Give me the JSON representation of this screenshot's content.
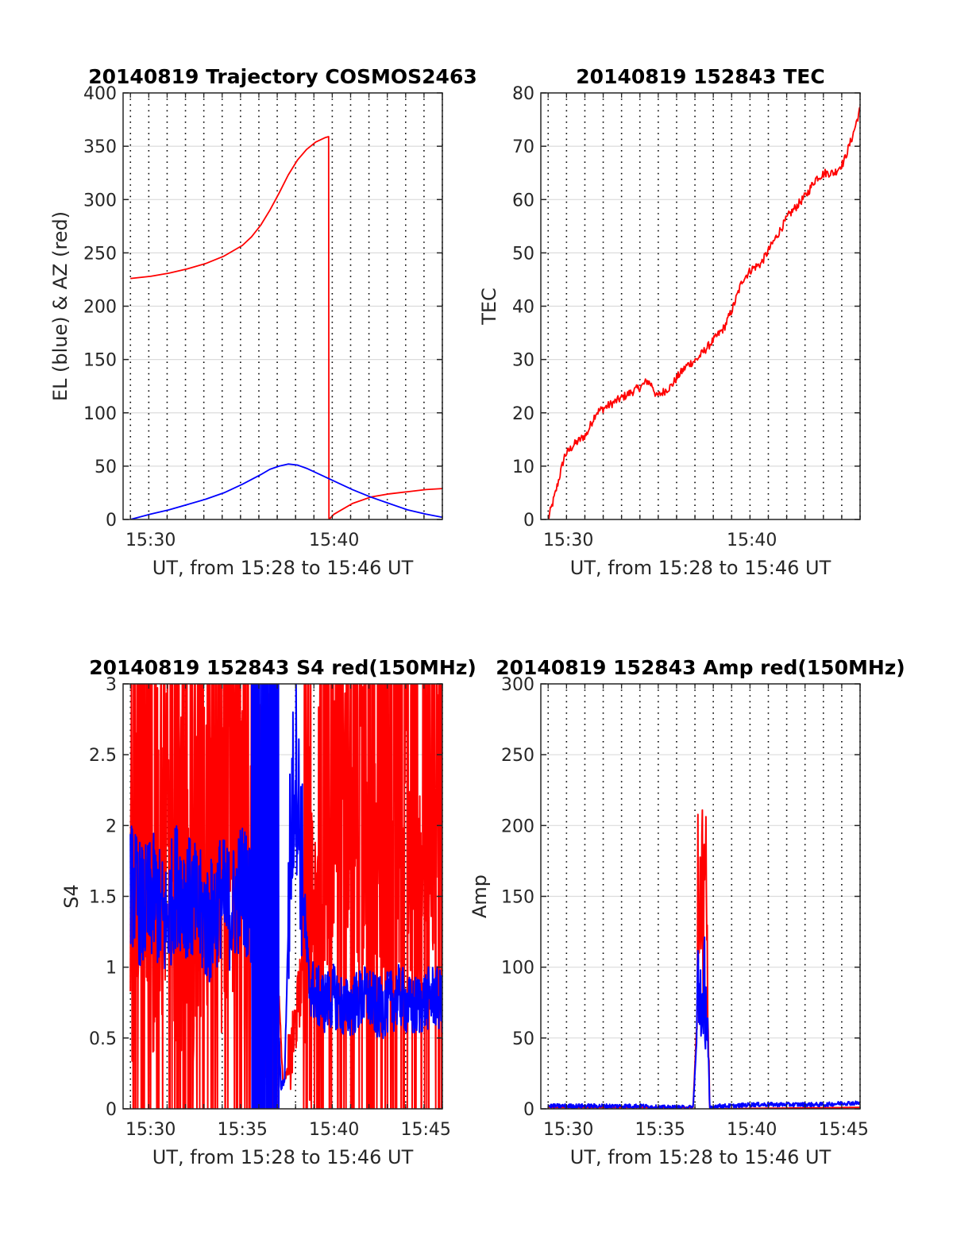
{
  "chart_data": [
    {
      "type": "line",
      "title": "20140819 Trajectory COSMOS2463",
      "xlabel": "UT, from 15:28 to 15:46 UT",
      "ylabel": "EL (blue) & AZ (red)",
      "xlim_minutes": [
        928.5,
        945.9
      ],
      "ylim": [
        0,
        400
      ],
      "yticks": [
        0,
        50,
        100,
        150,
        200,
        250,
        300,
        350,
        400
      ],
      "xticks": [
        {
          "value": 930,
          "label": "15:30"
        },
        {
          "value": 940,
          "label": "15:40"
        }
      ],
      "vgrid_minutes": [
        928.9,
        929.9,
        930.9,
        931.9,
        932.9,
        933.9,
        934.9,
        935.9,
        936.9,
        937.9,
        938.9,
        939.9,
        940.9,
        941.9,
        942.9,
        943.9,
        944.9,
        945.9
      ],
      "grid": true,
      "series": [
        {
          "color": "#ff0000",
          "x": [
            928.9,
            930,
            931,
            932,
            933,
            934,
            935,
            935.5,
            936,
            936.5,
            937,
            937.5,
            938,
            938.5,
            939,
            939.5,
            939.7,
            939.72,
            940,
            941,
            942,
            943,
            944,
            945,
            945.9
          ],
          "values": [
            226,
            228,
            231,
            235,
            240,
            247,
            257,
            265,
            276,
            290,
            306,
            323,
            337,
            347,
            354,
            358,
            359,
            0,
            5,
            15,
            21,
            24,
            26,
            28,
            29
          ]
        },
        {
          "color": "#0000ff",
          "x": [
            928.9,
            930,
            931,
            932,
            933,
            934,
            935,
            936,
            936.5,
            937,
            937.5,
            938,
            938.5,
            939,
            940,
            941,
            942,
            943,
            944,
            945,
            945.9
          ],
          "values": [
            0,
            5,
            9,
            14,
            19,
            25,
            33,
            42,
            47,
            50,
            52,
            51,
            48,
            44,
            36,
            28,
            21,
            15,
            9,
            5,
            2
          ]
        }
      ]
    },
    {
      "type": "line",
      "title": "20140819 152843 TEC",
      "xlabel": "UT, from 15:28 to 15:46 UT",
      "ylabel": "TEC",
      "xlim_minutes": [
        928.5,
        945.9
      ],
      "ylim": [
        0,
        80
      ],
      "yticks": [
        0,
        10,
        20,
        30,
        40,
        50,
        60,
        70,
        80
      ],
      "xticks": [
        {
          "value": 930,
          "label": "15:30"
        },
        {
          "value": 940,
          "label": "15:40"
        }
      ],
      "vgrid_minutes": [
        928.9,
        929.9,
        930.9,
        931.9,
        932.9,
        933.9,
        934.9,
        935.9,
        936.9,
        937.9,
        938.9,
        939.9,
        940.9,
        941.9,
        942.9,
        943.9,
        944.9,
        945.9
      ],
      "grid": true,
      "series": [
        {
          "color": "#ff0000",
          "x": [
            928.9,
            929.3,
            929.8,
            930.3,
            931,
            931.5,
            932,
            932.5,
            933,
            933.5,
            934,
            934.3,
            934.6,
            934.8,
            935.2,
            935.6,
            936,
            936.5,
            937,
            937.5,
            938,
            938.5,
            939,
            939.5,
            940,
            940.5,
            941,
            941.5,
            942,
            942.5,
            943,
            943.5,
            944,
            944.5,
            945,
            945.5,
            945.9
          ],
          "values": [
            0,
            5,
            12,
            14,
            16,
            20,
            21,
            22,
            23,
            24,
            25,
            26,
            25,
            23,
            24,
            25,
            27,
            29,
            30,
            32,
            34,
            36,
            40,
            45,
            47,
            48,
            51,
            54,
            57,
            59,
            61,
            64,
            65,
            65,
            67,
            72,
            77
          ]
        }
      ]
    },
    {
      "type": "line",
      "title": "20140819 152843 S4 red(150MHz)",
      "xlabel": "UT, from 15:28 to 15:46 UT",
      "ylabel": "S4",
      "xlim_minutes": [
        928.5,
        945.9
      ],
      "ylim": [
        0,
        3
      ],
      "yticks": [
        0,
        0.5,
        1,
        1.5,
        2,
        2.5,
        3
      ],
      "xticks": [
        {
          "value": 930,
          "label": "15:30"
        },
        {
          "value": 935,
          "label": "15:35"
        },
        {
          "value": 940,
          "label": "15:40"
        },
        {
          "value": 945,
          "label": "15:45"
        }
      ],
      "vgrid_minutes": [
        928.9,
        929.9,
        930.9,
        931.9,
        932.9,
        933.9,
        934.9,
        935.9,
        936.9,
        937.9,
        938.9,
        939.9,
        940.9,
        941.9,
        942.9,
        943.9,
        944.9,
        945.9
      ],
      "grid": true,
      "series": [
        {
          "color": "#ff0000",
          "x": [
            928.9,
            929.6,
            930.2,
            930.8,
            931.4,
            932,
            932.6,
            933.2,
            933.8,
            934.4,
            935,
            935.6,
            936.2,
            936.8,
            937.2,
            937.6,
            938,
            938.4,
            938.8,
            939.2,
            939.6,
            940,
            940.6,
            941.2,
            941.8,
            942.4,
            943,
            943.6,
            944.2,
            944.8,
            945.4,
            945.9
          ],
          "values": [
            1.5,
            2.4,
            1.6,
            2.2,
            1.7,
            1.8,
            1.6,
            1.9,
            1.8,
            2.0,
            1.8,
            1.6,
            1.5,
            1.4,
            0.2,
            0.3,
            0.7,
            1.1,
            1.5,
            1.9,
            2.2,
            2.4,
            2.3,
            2.2,
            2.4,
            2.2,
            2.0,
            2.1,
            2.3,
            2.0,
            2.1,
            2.2
          ]
        },
        {
          "color": "#0000ff",
          "x": [
            928.9,
            929.6,
            930.2,
            930.8,
            931.4,
            932,
            932.6,
            933.2,
            933.8,
            934.4,
            935,
            935.6,
            936.2,
            936.8,
            937.1,
            937.3,
            937.6,
            937.9,
            938.2,
            938.6,
            939,
            939.5,
            940,
            940.6,
            941.2,
            941.8,
            942.4,
            943,
            943.6,
            944.2,
            944.8,
            945.4,
            945.9
          ],
          "values": [
            1.6,
            1.4,
            1.5,
            1.3,
            1.6,
            1.5,
            1.4,
            1.3,
            1.5,
            1.4,
            1.6,
            1.4,
            1.5,
            1.3,
            0.15,
            0.2,
            1.8,
            2.5,
            1.8,
            0.9,
            0.8,
            0.75,
            0.8,
            0.7,
            0.75,
            0.8,
            0.7,
            0.75,
            0.8,
            0.7,
            0.75,
            0.8,
            0.75
          ]
        }
      ]
    },
    {
      "type": "line",
      "title": "20140819 152843 Amp red(150MHz)",
      "xlabel": "UT, from 15:28 to 15:46 UT",
      "ylabel": "Amp",
      "xlim_minutes": [
        928.5,
        945.9
      ],
      "ylim": [
        0,
        300
      ],
      "yticks": [
        0,
        50,
        100,
        150,
        200,
        250,
        300
      ],
      "xticks": [
        {
          "value": 930,
          "label": "15:30"
        },
        {
          "value": 935,
          "label": "15:35"
        },
        {
          "value": 940,
          "label": "15:40"
        },
        {
          "value": 945,
          "label": "15:45"
        }
      ],
      "vgrid_minutes": [
        928.9,
        929.9,
        930.9,
        931.9,
        932.9,
        933.9,
        934.9,
        935.9,
        936.9,
        937.9,
        938.9,
        939.9,
        940.9,
        941.9,
        942.9,
        943.9,
        944.9,
        945.9
      ],
      "grid": true,
      "series": [
        {
          "color": "#ff0000",
          "x": [
            928.9,
            936.8,
            937.0,
            937.05,
            937.1,
            937.2,
            937.3,
            937.35,
            937.4,
            937.5,
            937.6,
            937.7,
            945.9
          ],
          "values": [
            1,
            1,
            60,
            200,
            160,
            180,
            215,
            90,
            210,
            200,
            120,
            0,
            1
          ]
        },
        {
          "color": "#0000ff",
          "x": [
            928.9,
            930,
            931,
            932,
            933,
            934,
            935,
            936,
            936.8,
            937.0,
            937.05,
            937.1,
            937.2,
            937.3,
            937.35,
            937.4,
            937.5,
            937.6,
            937.7,
            938,
            939,
            940,
            941,
            942,
            943,
            944,
            945,
            945.9
          ],
          "values": [
            2,
            2,
            2,
            2,
            2,
            2,
            1,
            1,
            1,
            50,
            140,
            100,
            115,
            95,
            60,
            120,
            100,
            70,
            0,
            2,
            2,
            3,
            3,
            3,
            3,
            3,
            4,
            4
          ]
        }
      ]
    }
  ]
}
